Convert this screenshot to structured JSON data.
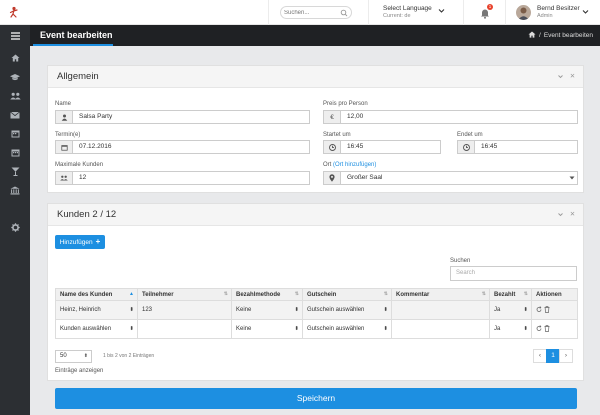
{
  "topbar": {
    "search_placeholder": "Suchen...",
    "language": {
      "label": "Select Language",
      "current": "Current: de"
    },
    "notifications_count": "1",
    "user": {
      "name": "Bernd Besitzer",
      "role": "Admin"
    }
  },
  "page": {
    "title": "Event bearbeiten",
    "breadcrumb": "Event bearbeiten"
  },
  "general": {
    "title": "Allgemein",
    "name_label": "Name",
    "name_value": "Salsa Party",
    "price_label": "Preis pro Person",
    "price_currency": "€",
    "price_value": "12,00",
    "date_label": "Termin(e)",
    "date_value": "07.12.2016",
    "start_label": "Startet um",
    "start_value": "16:45",
    "end_label": "Endet um",
    "end_value": "16:45",
    "max_label": "Maximale Kunden",
    "max_value": "12",
    "place_label": "Ort",
    "place_link": "(Ort hinzufügen)",
    "place_value": "Großer Saal"
  },
  "customers": {
    "title": "Kunden 2 / 12",
    "add_button": "Hinzufügen",
    "search_label": "Suchen",
    "search_placeholder": "Search",
    "columns": [
      "Name des Kunden",
      "Teilnehmer",
      "Bezahlmethode",
      "Gutschein",
      "Kommentar",
      "Bezahlt",
      "Aktionen"
    ],
    "rows": [
      [
        "Heinz, Heinrich",
        "123",
        "Keine",
        "Gutschein auswählen",
        "",
        "Ja",
        ""
      ],
      [
        "Kunden auswählen",
        "",
        "Keine",
        "Gutschein auswählen",
        "",
        "Ja",
        ""
      ]
    ],
    "per_page": "50",
    "info": "1 bis 2 von 2 Einträgen",
    "per_page_label": "Einträge anzeigen",
    "pager": {
      "prev": "‹",
      "page": "1",
      "next": "›"
    }
  },
  "save_button": "Speichern",
  "colors": {
    "accent": "#1d8fe1",
    "sidebar": "#2c2f33",
    "titlebar": "#1f2124"
  }
}
